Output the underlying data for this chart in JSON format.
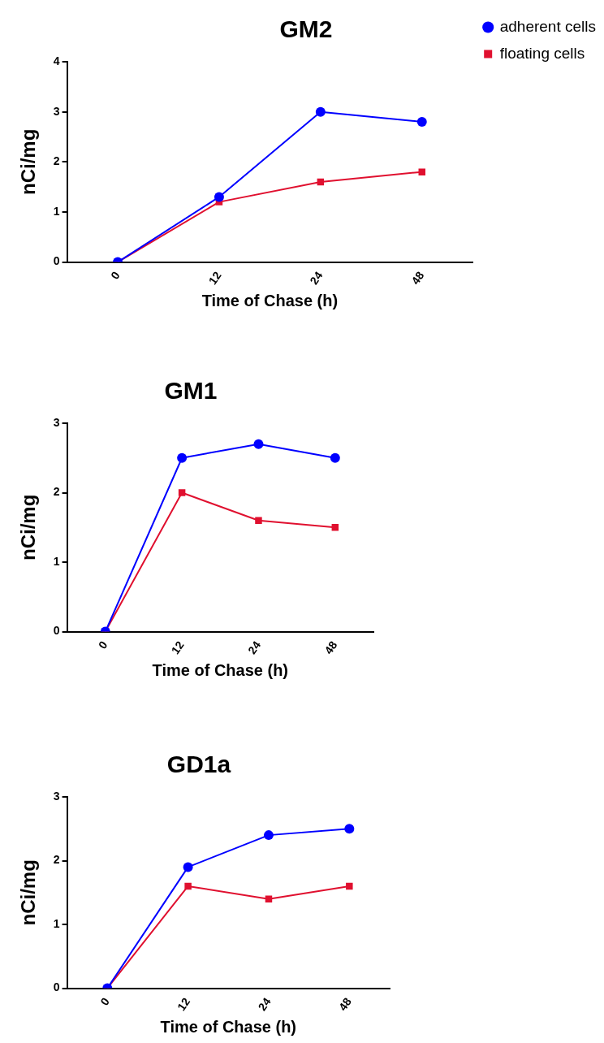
{
  "chart_data": [
    {
      "type": "line",
      "title": "GM2",
      "xlabel": "Time of Chase (h)",
      "ylabel": "nCi/mg",
      "categories": [
        "0",
        "12",
        "24",
        "48"
      ],
      "ylim": [
        0,
        4
      ],
      "yticks": [
        0,
        1,
        2,
        3,
        4
      ],
      "grid": false,
      "legend": "top right",
      "series": [
        {
          "name": "adherent cells",
          "color": "#0000ff",
          "marker": "circle",
          "values": [
            0,
            1.3,
            3.0,
            2.8
          ]
        },
        {
          "name": "floating cells",
          "color": "#e0102f",
          "marker": "square",
          "values": [
            0,
            1.2,
            1.6,
            1.8
          ]
        }
      ]
    },
    {
      "type": "line",
      "title": "GM1",
      "xlabel": "Time of Chase (h)",
      "ylabel": "nCi/mg",
      "categories": [
        "0",
        "12",
        "24",
        "48"
      ],
      "ylim": [
        0,
        3
      ],
      "yticks": [
        0,
        1,
        2,
        3
      ],
      "grid": false,
      "legend": false,
      "series": [
        {
          "color": "#0000ff",
          "marker": "circle",
          "values": [
            0,
            2.5,
            2.7,
            2.5
          ]
        },
        {
          "color": "#e0102f",
          "marker": "square",
          "values": [
            0,
            2.0,
            1.6,
            1.5
          ]
        }
      ]
    },
    {
      "type": "line",
      "title": "GD1a",
      "xlabel": "Time of Chase (h)",
      "ylabel": "nCi/mg",
      "categories": [
        "0",
        "12",
        "24",
        "48"
      ],
      "ylim": [
        0,
        3
      ],
      "yticks": [
        0,
        1,
        2,
        3
      ],
      "grid": false,
      "legend": false,
      "series": [
        {
          "color": "#0000ff",
          "marker": "circle",
          "values": [
            0,
            1.9,
            2.4,
            2.5
          ]
        },
        {
          "color": "#e0102f",
          "marker": "square",
          "values": [
            0,
            1.6,
            1.4,
            1.6
          ]
        }
      ]
    }
  ]
}
